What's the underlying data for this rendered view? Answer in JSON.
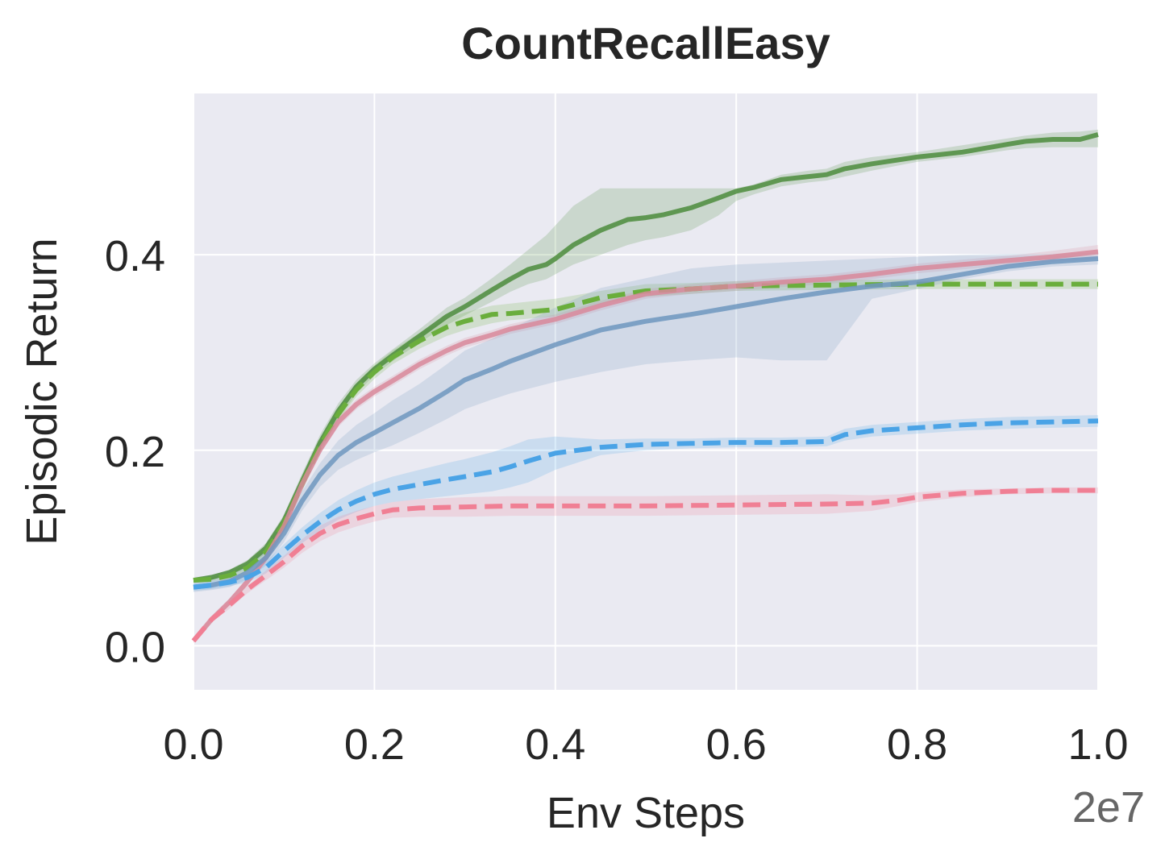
{
  "chart_data": {
    "type": "line",
    "title": "CountRecallEasy",
    "xlabel": "Env Steps",
    "ylabel": "Episodic Return",
    "x_offset_text": "2e7",
    "xlim": [
      0.0,
      1.0
    ],
    "ylim": [
      -0.045,
      0.565
    ],
    "xticks": [
      "0.0",
      "0.2",
      "0.4",
      "0.6",
      "0.8",
      "1.0"
    ],
    "yticks": [
      "0.0",
      "0.2",
      "0.4"
    ],
    "grid": true,
    "legend": "none",
    "series": [
      {
        "color": "#4c8c3c",
        "style": "solid",
        "x": [
          0,
          0.02,
          0.04,
          0.06,
          0.08,
          0.1,
          0.12,
          0.14,
          0.16,
          0.18,
          0.2,
          0.22,
          0.25,
          0.28,
          0.3,
          0.33,
          0.35,
          0.37,
          0.39,
          0.4,
          0.42,
          0.45,
          0.48,
          0.5,
          0.52,
          0.55,
          0.58,
          0.6,
          0.62,
          0.65,
          0.68,
          0.7,
          0.72,
          0.75,
          0.8,
          0.85,
          0.9,
          0.92,
          0.95,
          0.98,
          1.0
        ],
        "y": [
          0.067,
          0.07,
          0.075,
          0.084,
          0.1,
          0.128,
          0.168,
          0.208,
          0.24,
          0.265,
          0.283,
          0.297,
          0.317,
          0.337,
          0.347,
          0.364,
          0.375,
          0.385,
          0.39,
          0.396,
          0.41,
          0.425,
          0.436,
          0.438,
          0.441,
          0.448,
          0.458,
          0.465,
          0.469,
          0.477,
          0.48,
          0.482,
          0.488,
          0.493,
          0.5,
          0.505,
          0.513,
          0.516,
          0.518,
          0.518,
          0.523
        ],
        "band_lo": [
          0.065,
          0.068,
          0.072,
          0.08,
          0.095,
          0.122,
          0.16,
          0.2,
          0.232,
          0.258,
          0.277,
          0.291,
          0.31,
          0.328,
          0.338,
          0.352,
          0.362,
          0.37,
          0.375,
          0.38,
          0.39,
          0.4,
          0.41,
          0.415,
          0.418,
          0.425,
          0.44,
          0.455,
          0.462,
          0.47,
          0.474,
          0.476,
          0.48,
          0.486,
          0.495,
          0.5,
          0.507,
          0.509,
          0.51,
          0.51,
          0.51
        ],
        "band_hi": [
          0.069,
          0.072,
          0.078,
          0.088,
          0.105,
          0.134,
          0.176,
          0.216,
          0.248,
          0.272,
          0.289,
          0.303,
          0.324,
          0.346,
          0.356,
          0.376,
          0.39,
          0.405,
          0.42,
          0.43,
          0.45,
          0.468,
          0.468,
          0.468,
          0.468,
          0.468,
          0.468,
          0.468,
          0.472,
          0.482,
          0.486,
          0.488,
          0.495,
          0.5,
          0.505,
          0.512,
          0.519,
          0.522,
          0.525,
          0.526,
          0.528
        ]
      },
      {
        "color": "#6aae3c",
        "style": "dashed",
        "x": [
          0,
          0.02,
          0.04,
          0.06,
          0.08,
          0.1,
          0.12,
          0.14,
          0.16,
          0.18,
          0.2,
          0.22,
          0.25,
          0.28,
          0.3,
          0.33,
          0.35,
          0.4,
          0.45,
          0.5,
          0.55,
          0.6,
          0.7,
          0.8,
          0.9,
          1.0
        ],
        "y": [
          0.067,
          0.068,
          0.072,
          0.08,
          0.096,
          0.125,
          0.165,
          0.205,
          0.237,
          0.262,
          0.28,
          0.295,
          0.312,
          0.326,
          0.332,
          0.339,
          0.34,
          0.344,
          0.356,
          0.363,
          0.365,
          0.368,
          0.369,
          0.37,
          0.37,
          0.37
        ],
        "band_lo": [
          0.065,
          0.066,
          0.069,
          0.076,
          0.091,
          0.119,
          0.158,
          0.198,
          0.23,
          0.255,
          0.273,
          0.288,
          0.304,
          0.317,
          0.323,
          0.33,
          0.333,
          0.337,
          0.35,
          0.357,
          0.36,
          0.363,
          0.364,
          0.365,
          0.365,
          0.365
        ],
        "band_hi": [
          0.069,
          0.07,
          0.075,
          0.084,
          0.101,
          0.131,
          0.172,
          0.212,
          0.244,
          0.269,
          0.287,
          0.302,
          0.32,
          0.335,
          0.341,
          0.348,
          0.35,
          0.355,
          0.363,
          0.37,
          0.371,
          0.373,
          0.374,
          0.375,
          0.375,
          0.375
        ]
      },
      {
        "color": "#d8889a",
        "style": "solid",
        "x": [
          0,
          0.02,
          0.04,
          0.06,
          0.08,
          0.1,
          0.12,
          0.14,
          0.16,
          0.18,
          0.2,
          0.22,
          0.25,
          0.28,
          0.3,
          0.33,
          0.35,
          0.4,
          0.45,
          0.5,
          0.55,
          0.6,
          0.65,
          0.7,
          0.75,
          0.8,
          0.85,
          0.9,
          0.95,
          1.0
        ],
        "y": [
          0.005,
          0.027,
          0.045,
          0.066,
          0.09,
          0.122,
          0.165,
          0.201,
          0.229,
          0.247,
          0.26,
          0.271,
          0.288,
          0.302,
          0.31,
          0.318,
          0.324,
          0.334,
          0.348,
          0.36,
          0.365,
          0.368,
          0.372,
          0.375,
          0.38,
          0.386,
          0.39,
          0.394,
          0.398,
          0.403
        ],
        "band_lo": [
          0.003,
          0.024,
          0.042,
          0.062,
          0.086,
          0.117,
          0.16,
          0.196,
          0.224,
          0.242,
          0.255,
          0.266,
          0.283,
          0.297,
          0.305,
          0.313,
          0.319,
          0.329,
          0.343,
          0.355,
          0.36,
          0.363,
          0.367,
          0.37,
          0.375,
          0.381,
          0.385,
          0.389,
          0.393,
          0.396
        ],
        "band_hi": [
          0.007,
          0.03,
          0.048,
          0.07,
          0.094,
          0.127,
          0.17,
          0.206,
          0.234,
          0.252,
          0.265,
          0.276,
          0.293,
          0.307,
          0.315,
          0.323,
          0.329,
          0.339,
          0.353,
          0.365,
          0.37,
          0.373,
          0.377,
          0.38,
          0.385,
          0.391,
          0.395,
          0.399,
          0.404,
          0.41
        ]
      },
      {
        "color": "#6e96be",
        "style": "solid",
        "x": [
          0,
          0.02,
          0.04,
          0.06,
          0.08,
          0.1,
          0.12,
          0.14,
          0.16,
          0.18,
          0.2,
          0.22,
          0.25,
          0.28,
          0.3,
          0.33,
          0.35,
          0.4,
          0.45,
          0.5,
          0.55,
          0.6,
          0.65,
          0.7,
          0.75,
          0.8,
          0.85,
          0.9,
          0.95,
          1.0
        ],
        "y": [
          0.06,
          0.062,
          0.066,
          0.075,
          0.09,
          0.115,
          0.148,
          0.175,
          0.195,
          0.208,
          0.218,
          0.228,
          0.243,
          0.26,
          0.272,
          0.283,
          0.291,
          0.308,
          0.323,
          0.332,
          0.339,
          0.347,
          0.355,
          0.362,
          0.368,
          0.372,
          0.38,
          0.388,
          0.393,
          0.396
        ],
        "band_lo": [
          0.055,
          0.057,
          0.06,
          0.068,
          0.082,
          0.106,
          0.138,
          0.163,
          0.18,
          0.19,
          0.198,
          0.205,
          0.218,
          0.232,
          0.242,
          0.252,
          0.258,
          0.27,
          0.28,
          0.288,
          0.292,
          0.295,
          0.292,
          0.292,
          0.355,
          0.365,
          0.375,
          0.383,
          0.388,
          0.39
        ],
        "band_hi": [
          0.066,
          0.068,
          0.072,
          0.082,
          0.098,
          0.124,
          0.158,
          0.187,
          0.21,
          0.226,
          0.238,
          0.251,
          0.268,
          0.288,
          0.302,
          0.314,
          0.324,
          0.346,
          0.366,
          0.376,
          0.386,
          0.39,
          0.392,
          0.394,
          0.396,
          0.398,
          0.4,
          0.401,
          0.401,
          0.402
        ]
      },
      {
        "color": "#4aa3e6",
        "style": "dashed",
        "x": [
          0,
          0.02,
          0.04,
          0.06,
          0.08,
          0.1,
          0.12,
          0.14,
          0.16,
          0.18,
          0.2,
          0.22,
          0.25,
          0.28,
          0.3,
          0.33,
          0.35,
          0.37,
          0.4,
          0.45,
          0.5,
          0.55,
          0.6,
          0.65,
          0.7,
          0.72,
          0.75,
          0.8,
          0.85,
          0.9,
          0.95,
          1.0
        ],
        "y": [
          0.06,
          0.062,
          0.065,
          0.07,
          0.08,
          0.097,
          0.113,
          0.127,
          0.139,
          0.148,
          0.155,
          0.16,
          0.165,
          0.17,
          0.173,
          0.178,
          0.183,
          0.189,
          0.197,
          0.203,
          0.206,
          0.207,
          0.208,
          0.208,
          0.209,
          0.216,
          0.22,
          0.223,
          0.226,
          0.228,
          0.229,
          0.23
        ],
        "band_lo": [
          0.056,
          0.058,
          0.061,
          0.065,
          0.074,
          0.09,
          0.105,
          0.118,
          0.129,
          0.137,
          0.143,
          0.147,
          0.15,
          0.153,
          0.155,
          0.158,
          0.162,
          0.167,
          0.18,
          0.195,
          0.2,
          0.202,
          0.203,
          0.203,
          0.204,
          0.21,
          0.214,
          0.217,
          0.22,
          0.222,
          0.223,
          0.224
        ],
        "band_hi": [
          0.064,
          0.066,
          0.069,
          0.075,
          0.086,
          0.104,
          0.121,
          0.136,
          0.149,
          0.159,
          0.167,
          0.173,
          0.18,
          0.187,
          0.191,
          0.198,
          0.204,
          0.211,
          0.214,
          0.211,
          0.212,
          0.212,
          0.213,
          0.213,
          0.214,
          0.222,
          0.226,
          0.229,
          0.232,
          0.234,
          0.235,
          0.236
        ]
      },
      {
        "color": "#f07f94",
        "style": "dashed",
        "x": [
          0,
          0.02,
          0.04,
          0.06,
          0.08,
          0.1,
          0.12,
          0.14,
          0.16,
          0.18,
          0.2,
          0.22,
          0.25,
          0.3,
          0.35,
          0.4,
          0.5,
          0.6,
          0.7,
          0.75,
          0.78,
          0.8,
          0.85,
          0.9,
          0.95,
          1.0
        ],
        "y": [
          0.005,
          0.027,
          0.042,
          0.058,
          0.072,
          0.086,
          0.102,
          0.115,
          0.124,
          0.13,
          0.135,
          0.139,
          0.141,
          0.142,
          0.143,
          0.143,
          0.143,
          0.144,
          0.145,
          0.146,
          0.149,
          0.152,
          0.156,
          0.158,
          0.159,
          0.159
        ],
        "band_lo": [
          0.003,
          0.024,
          0.038,
          0.054,
          0.067,
          0.08,
          0.095,
          0.107,
          0.116,
          0.122,
          0.127,
          0.131,
          0.132,
          0.132,
          0.133,
          0.133,
          0.133,
          0.134,
          0.135,
          0.138,
          0.143,
          0.147,
          0.152,
          0.155,
          0.156,
          0.156
        ],
        "band_hi": [
          0.007,
          0.03,
          0.046,
          0.062,
          0.077,
          0.092,
          0.109,
          0.123,
          0.132,
          0.138,
          0.143,
          0.147,
          0.15,
          0.152,
          0.153,
          0.153,
          0.153,
          0.154,
          0.155,
          0.154,
          0.155,
          0.157,
          0.16,
          0.161,
          0.162,
          0.162
        ]
      }
    ]
  }
}
